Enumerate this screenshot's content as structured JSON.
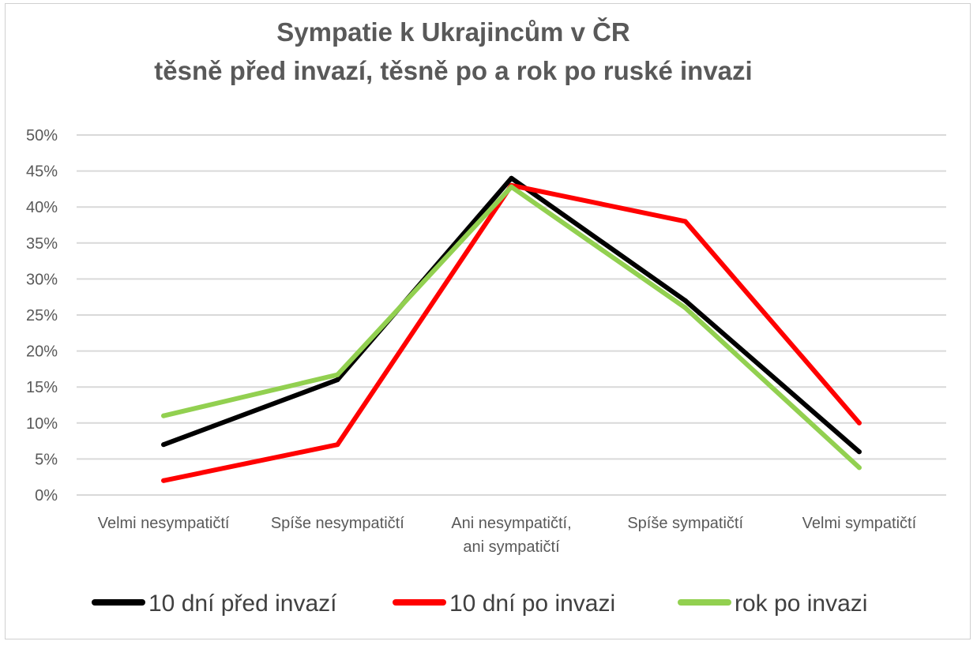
{
  "chart_data": {
    "type": "line",
    "title": [
      "Sympatie k Ukrajincům v ČR",
      "těsně před invazí, těsně po a rok po ruské invazi"
    ],
    "categories": [
      [
        "Velmi nesympatičtí"
      ],
      [
        "Spíše nesympatičtí"
      ],
      [
        "Ani nesympatičtí,",
        "ani sympatičtí"
      ],
      [
        "Spíše sympatičtí"
      ],
      [
        "Velmi sympatičtí"
      ]
    ],
    "yticks": [
      "0%",
      "5%",
      "10%",
      "15%",
      "20%",
      "25%",
      "30%",
      "35%",
      "40%",
      "45%",
      "50%"
    ],
    "ylim": [
      0,
      50
    ],
    "grid": true,
    "legend_position": "bottom",
    "series": [
      {
        "name": "10 dní před invazí",
        "color": "#000000",
        "values": [
          7,
          16,
          44,
          27,
          6
        ]
      },
      {
        "name": "10 dní po invazi",
        "color": "#ff0000",
        "values": [
          2,
          7,
          43,
          38,
          10
        ]
      },
      {
        "name": "rok po invazi",
        "color": "#92d050",
        "values": [
          11,
          16.7,
          42.8,
          26,
          3.8
        ]
      }
    ]
  }
}
